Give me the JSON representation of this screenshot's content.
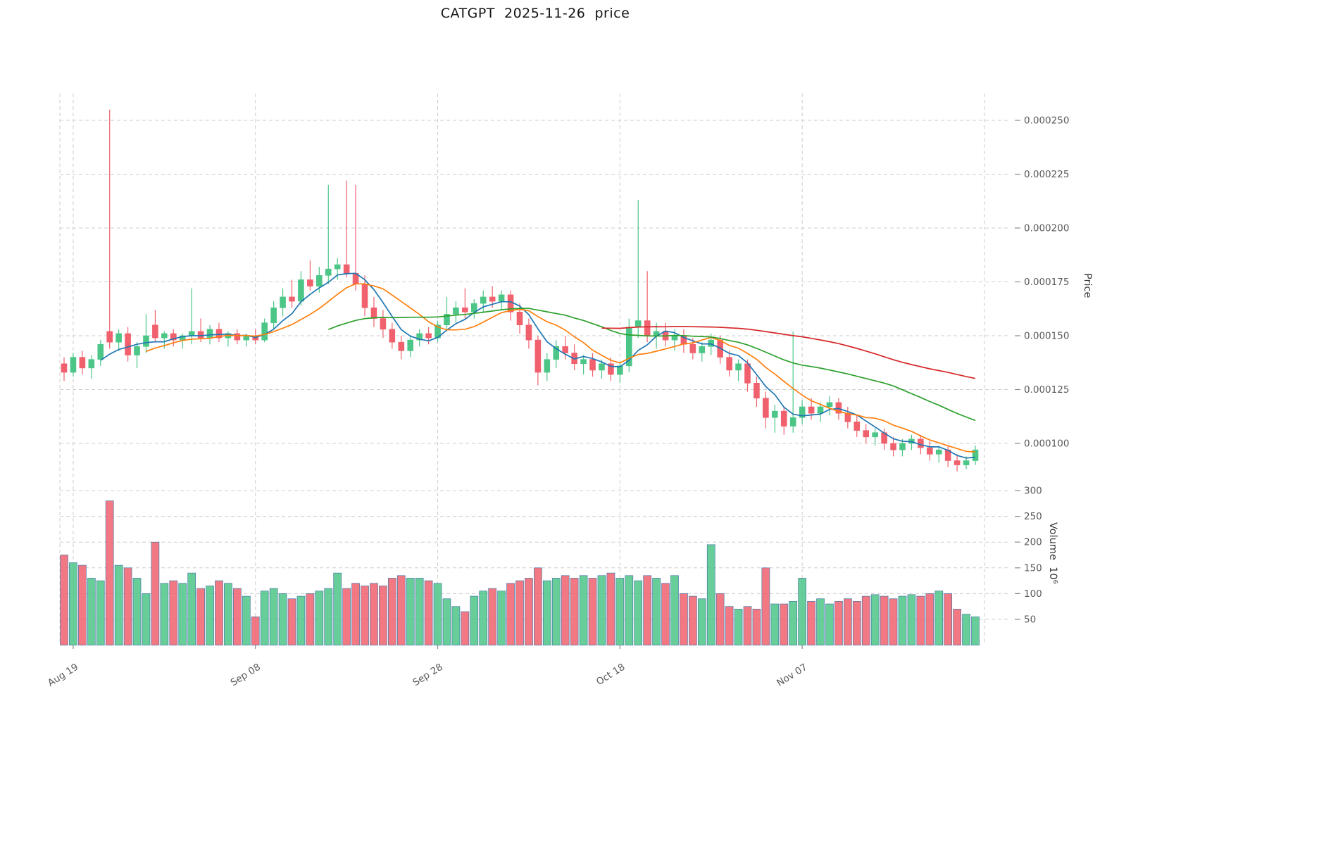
{
  "chart_data": {
    "type": "candlestick",
    "title": "CATGPT  2025-11-26  price",
    "price_axis_label": "Price",
    "volume_axis_label": "Volume  10⁶",
    "price_unit": "1e-6",
    "volume_unit": "1e6",
    "grid": true,
    "legend": "none",
    "x_tick_labels": [
      "Aug 19",
      "Sep 08",
      "Sep 28",
      "Oct 18",
      "Nov 07"
    ],
    "x_tick_indices": [
      1,
      21,
      41,
      61,
      81
    ],
    "x_grid_indices": [
      1,
      21,
      41,
      61,
      81,
      101
    ],
    "price_ticks": [
      {
        "value": 100,
        "label": "0.000100"
      },
      {
        "value": 125,
        "label": "0.000125"
      },
      {
        "value": 150,
        "label": "0.000150"
      },
      {
        "value": 175,
        "label": "0.000175"
      },
      {
        "value": 200,
        "label": "0.000200"
      },
      {
        "value": 225,
        "label": "0.000225"
      },
      {
        "value": 250,
        "label": "0.000250"
      }
    ],
    "volume_ticks": [
      {
        "value": 50,
        "label": "50"
      },
      {
        "value": 100,
        "label": "100"
      },
      {
        "value": 150,
        "label": "150"
      },
      {
        "value": 200,
        "label": "200"
      },
      {
        "value": 250,
        "label": "250"
      },
      {
        "value": 300,
        "label": "300"
      }
    ],
    "price_ylim": [
      84,
      263
    ],
    "volume_ylim": [
      0,
      310
    ],
    "ohlc": [
      [
        137,
        140,
        129,
        133
      ],
      [
        133,
        142,
        131,
        140
      ],
      [
        140,
        143,
        132,
        135
      ],
      [
        135,
        141,
        130,
        139
      ],
      [
        139,
        148,
        136,
        146
      ],
      [
        152,
        255,
        144,
        147
      ],
      [
        147,
        153,
        143,
        151
      ],
      [
        151,
        154,
        138,
        141
      ],
      [
        141,
        147,
        135,
        145
      ],
      [
        145,
        160,
        142,
        150
      ],
      [
        155,
        162,
        147,
        149
      ],
      [
        149,
        152,
        144,
        151
      ],
      [
        151,
        153,
        145,
        148
      ],
      [
        148,
        151,
        144,
        150
      ],
      [
        150,
        172,
        146,
        152
      ],
      [
        152,
        158,
        147,
        149
      ],
      [
        149,
        155,
        146,
        153
      ],
      [
        153,
        156,
        147,
        149
      ],
      [
        149,
        152,
        145,
        151
      ],
      [
        151,
        153,
        146,
        148
      ],
      [
        148,
        151,
        145,
        150
      ],
      [
        150,
        153,
        146,
        148
      ],
      [
        148,
        158,
        147,
        156
      ],
      [
        156,
        166,
        153,
        163
      ],
      [
        163,
        172,
        159,
        168
      ],
      [
        168,
        176,
        163,
        166
      ],
      [
        166,
        180,
        164,
        176
      ],
      [
        176,
        185,
        171,
        173
      ],
      [
        173,
        182,
        170,
        178
      ],
      [
        178,
        220,
        174,
        181
      ],
      [
        181,
        186,
        176,
        183
      ],
      [
        183,
        222,
        177,
        179
      ],
      [
        179,
        220,
        171,
        174
      ],
      [
        174,
        178,
        159,
        163
      ],
      [
        163,
        168,
        154,
        158
      ],
      [
        158,
        162,
        149,
        153
      ],
      [
        153,
        156,
        144,
        147
      ],
      [
        147,
        150,
        139,
        143
      ],
      [
        143,
        150,
        140,
        148
      ],
      [
        148,
        153,
        145,
        151
      ],
      [
        151,
        154,
        146,
        149
      ],
      [
        149,
        157,
        147,
        155
      ],
      [
        155,
        168,
        152,
        160
      ],
      [
        160,
        166,
        156,
        163
      ],
      [
        163,
        172,
        158,
        161
      ],
      [
        161,
        167,
        158,
        165
      ],
      [
        165,
        171,
        161,
        168
      ],
      [
        168,
        173,
        163,
        166
      ],
      [
        166,
        171,
        162,
        169
      ],
      [
        169,
        171,
        157,
        161
      ],
      [
        161,
        165,
        151,
        155
      ],
      [
        155,
        158,
        144,
        148
      ],
      [
        148,
        150,
        127,
        133
      ],
      [
        133,
        142,
        129,
        139
      ],
      [
        139,
        148,
        135,
        145
      ],
      [
        145,
        150,
        139,
        142
      ],
      [
        142,
        146,
        134,
        137
      ],
      [
        137,
        141,
        132,
        139
      ],
      [
        139,
        142,
        131,
        134
      ],
      [
        134,
        139,
        130,
        137
      ],
      [
        137,
        140,
        129,
        132
      ],
      [
        132,
        138,
        128,
        136
      ],
      [
        136,
        158,
        133,
        154
      ],
      [
        154,
        213,
        149,
        157
      ],
      [
        157,
        180,
        147,
        150
      ],
      [
        150,
        156,
        144,
        152
      ],
      [
        152,
        156,
        145,
        148
      ],
      [
        148,
        153,
        143,
        150
      ],
      [
        150,
        153,
        142,
        146
      ],
      [
        146,
        149,
        139,
        142
      ],
      [
        142,
        147,
        138,
        145
      ],
      [
        145,
        151,
        141,
        148
      ],
      [
        148,
        150,
        137,
        140
      ],
      [
        140,
        143,
        131,
        134
      ],
      [
        134,
        139,
        129,
        137
      ],
      [
        137,
        139,
        124,
        128
      ],
      [
        128,
        131,
        117,
        121
      ],
      [
        121,
        124,
        107,
        112
      ],
      [
        112,
        118,
        105,
        115
      ],
      [
        115,
        117,
        104,
        108
      ],
      [
        108,
        152,
        105,
        112
      ],
      [
        112,
        120,
        109,
        117
      ],
      [
        117,
        121,
        111,
        114
      ],
      [
        114,
        119,
        110,
        117
      ],
      [
        117,
        122,
        113,
        119
      ],
      [
        119,
        121,
        111,
        114
      ],
      [
        114,
        117,
        107,
        110
      ],
      [
        110,
        113,
        103,
        106
      ],
      [
        106,
        109,
        100,
        103
      ],
      [
        103,
        107,
        99,
        105
      ],
      [
        105,
        107,
        97,
        100
      ],
      [
        100,
        103,
        94,
        97
      ],
      [
        97,
        102,
        94,
        100
      ],
      [
        100,
        104,
        97,
        102
      ],
      [
        102,
        104,
        95,
        98
      ],
      [
        98,
        101,
        92,
        95
      ],
      [
        95,
        99,
        91,
        97
      ],
      [
        97,
        99,
        89,
        92
      ],
      [
        92,
        95,
        87,
        90
      ],
      [
        90,
        94,
        88,
        92
      ],
      [
        92,
        99,
        90,
        97
      ]
    ],
    "volume": [
      175,
      160,
      155,
      130,
      125,
      280,
      155,
      150,
      130,
      100,
      200,
      120,
      125,
      120,
      140,
      110,
      115,
      125,
      120,
      110,
      95,
      55,
      105,
      110,
      100,
      90,
      95,
      100,
      105,
      110,
      140,
      110,
      120,
      115,
      120,
      115,
      130,
      135,
      130,
      130,
      125,
      120,
      90,
      75,
      65,
      95,
      105,
      110,
      105,
      120,
      125,
      130,
      150,
      125,
      130,
      135,
      130,
      135,
      130,
      135,
      140,
      130,
      135,
      125,
      135,
      130,
      120,
      135,
      100,
      95,
      90,
      195,
      100,
      75,
      70,
      75,
      70,
      150,
      80,
      80,
      85,
      130,
      85,
      90,
      80,
      85,
      90,
      85,
      95,
      98,
      95,
      90,
      95,
      98,
      95,
      100,
      105,
      100,
      70,
      60,
      55
    ],
    "moving_averages": [
      {
        "name": "SMA5",
        "period": 5,
        "color": "#1f77b4"
      },
      {
        "name": "SMA10",
        "period": 10,
        "color": "#ff7f0e"
      },
      {
        "name": "SMA30",
        "period": 30,
        "color": "#2ca02c"
      },
      {
        "name": "SMA60",
        "period": 60,
        "color": "#d62728"
      }
    ],
    "style": {
      "up_color": "#4cc687",
      "down_color": "#f0616d",
      "volume_edge_color": "#4a78a8",
      "grid_color": "#cccccc",
      "tick_color": "#8a8a8a",
      "tick_label_color": "#595959",
      "title_color": "#141414"
    }
  }
}
